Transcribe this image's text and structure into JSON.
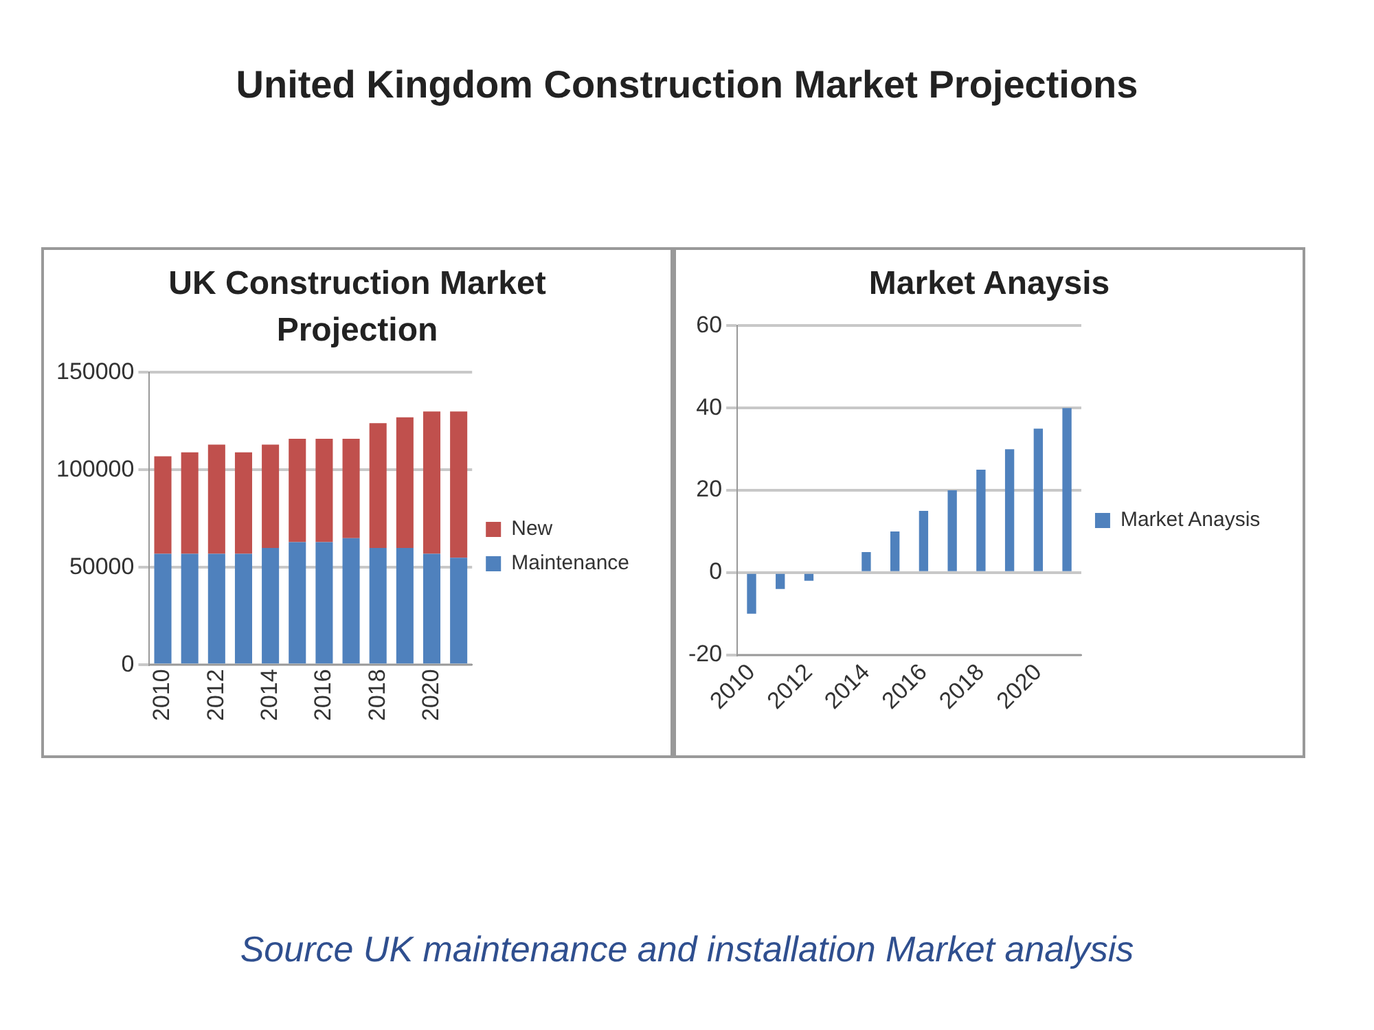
{
  "chart_data": [
    {
      "type": "bar",
      "title": "UK Construction Market Projection",
      "annotations": [
        "United Kingdom Construction Market Projections"
      ],
      "categories": [
        "2010",
        null,
        "2012",
        null,
        "2014",
        null,
        "2016",
        null,
        "2018",
        null,
        "2020",
        null
      ],
      "stacked": true,
      "series": [
        {
          "name": "Maintenance",
          "color": "#4f81bd",
          "values": [
            57000,
            57000,
            57000,
            57000,
            60000,
            63000,
            63000,
            65000,
            60000,
            60000,
            57000,
            55000
          ]
        },
        {
          "name": "New",
          "color": "#c0504d",
          "values": [
            50000,
            52000,
            56000,
            52000,
            53000,
            53000,
            53000,
            51000,
            64000,
            67000,
            73000,
            75000
          ]
        }
      ],
      "ylim": [
        0,
        150000
      ],
      "yticks": [
        0,
        50000,
        100000,
        150000
      ],
      "grid": "y",
      "legend": "right"
    },
    {
      "type": "bar",
      "title": "Market Anaysis",
      "annotations": [
        "Source UK maintenance and installation Market analysis"
      ],
      "categories": [
        "2010",
        null,
        "2012",
        null,
        "2014",
        null,
        "2016",
        null,
        "2018",
        null,
        "2020",
        null
      ],
      "series": [
        {
          "name": "Market Anaysis",
          "color": "#4f81bd",
          "values": [
            -10,
            -4,
            -2,
            0,
            5,
            10,
            15,
            20,
            25,
            30,
            35,
            40
          ]
        }
      ],
      "ylim": [
        -20,
        60
      ],
      "yticks": [
        -20,
        0,
        20,
        40,
        60
      ],
      "grid": "y",
      "legend": "right"
    }
  ]
}
